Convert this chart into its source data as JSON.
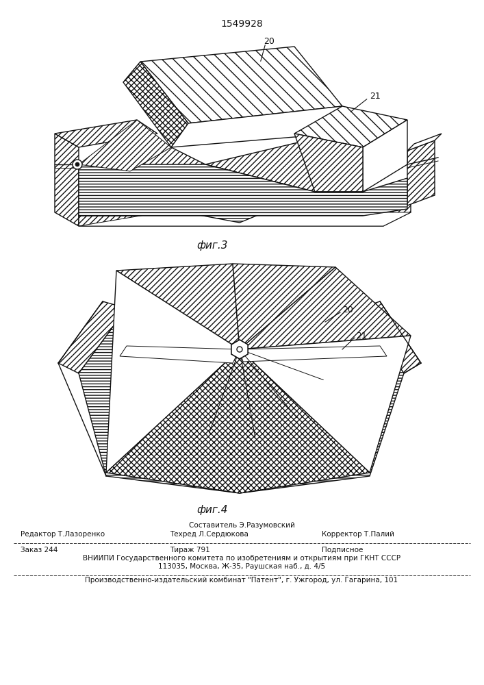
{
  "patent_number": "1549928",
  "fig3_label": "фиг.3",
  "fig4_label": "фиг.4",
  "label_20a": "20",
  "label_21a": "21",
  "label_20b": "20",
  "label_21b": "21",
  "footer_line1": "Составитель Э.Разумовский",
  "footer_line2_left": "Редактор Т.Лазоренко",
  "footer_line2_mid": "Техред Л.Сердюкова",
  "footer_line2_right": "Корректор Т.Палий",
  "footer_line3_left": "Заказ 244",
  "footer_line3_mid": "Тираж 791",
  "footer_line3_right": "Подписное",
  "footer_line4": "ВНИИПИ Государственного комитета по изобретениям и открытиям при ГКНТ СССР",
  "footer_line5": "113035, Москва, Ж-35, Раушская наб., д. 4/5",
  "footer_line6": "Производственно-издательский комбинат \"Патент\", г. Ужгород, ул. Гагарина, 101"
}
